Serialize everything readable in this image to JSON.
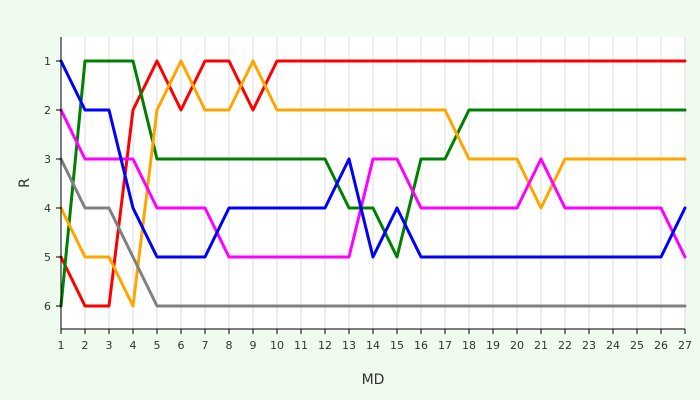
{
  "chart_data": {
    "type": "line",
    "title": "",
    "xlabel": "MD",
    "ylabel": "R",
    "x": [
      1,
      2,
      3,
      4,
      5,
      6,
      7,
      8,
      9,
      10,
      11,
      12,
      13,
      14,
      15,
      16,
      17,
      18,
      19,
      20,
      21,
      22,
      23,
      24,
      25,
      26,
      27
    ],
    "xlim": [
      1,
      27
    ],
    "ylim": [
      1,
      6
    ],
    "y_inverted": true,
    "grid": "vertical",
    "colors": {
      "background": "#eefbee",
      "plot_background": "#ffffff",
      "grid": "#dddddd",
      "axis": "#000000"
    },
    "series": [
      {
        "color": "#ff0000",
        "values": [
          5,
          6,
          6,
          2,
          1,
          2,
          1,
          1,
          2,
          1,
          1,
          1,
          1,
          1,
          1,
          1,
          1,
          1,
          1,
          1,
          1,
          1,
          1,
          1,
          1,
          1,
          1
        ]
      },
      {
        "color": "#008000",
        "values": [
          6,
          1,
          1,
          1,
          3,
          3,
          3,
          3,
          3,
          3,
          3,
          3,
          4,
          4,
          5,
          3,
          3,
          2,
          2,
          2,
          2,
          2,
          2,
          2,
          2,
          2,
          2
        ]
      },
      {
        "color": "#ffa500",
        "values": [
          4,
          5,
          5,
          6,
          2,
          1,
          2,
          2,
          1,
          2,
          2,
          2,
          2,
          2,
          2,
          2,
          2,
          3,
          3,
          3,
          4,
          3,
          3,
          3,
          3,
          3,
          3
        ]
      },
      {
        "color": "#ff00ff",
        "values": [
          2,
          3,
          3,
          3,
          4,
          4,
          4,
          5,
          5,
          5,
          5,
          5,
          5,
          3,
          3,
          4,
          4,
          4,
          4,
          4,
          3,
          4,
          4,
          4,
          4,
          4,
          5
        ]
      },
      {
        "color": "#0000ff",
        "values": [
          1,
          2,
          2,
          4,
          5,
          5,
          5,
          4,
          4,
          4,
          4,
          4,
          3,
          5,
          4,
          5,
          5,
          5,
          5,
          5,
          5,
          5,
          5,
          5,
          5,
          5,
          4
        ]
      },
      {
        "color": "#808080",
        "values": [
          3,
          4,
          4,
          5,
          6,
          6,
          6,
          6,
          6,
          6,
          6,
          6,
          6,
          6,
          6,
          6,
          6,
          6,
          6,
          6,
          6,
          6,
          6,
          6,
          6,
          6,
          6
        ]
      }
    ]
  }
}
